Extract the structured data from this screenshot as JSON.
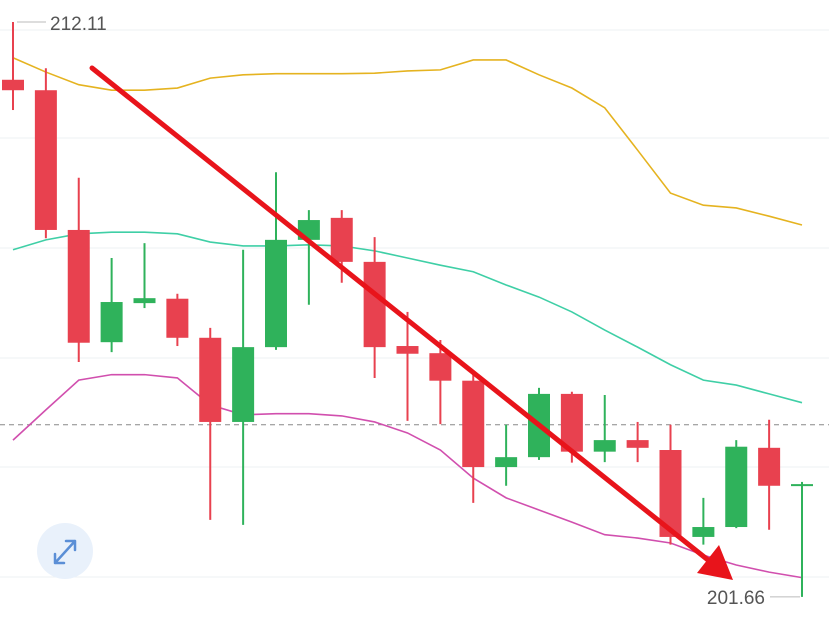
{
  "chart_data": {
    "type": "candlestick",
    "ylim": [
      201.24,
      212.51
    ],
    "up_color": "#2fb25b",
    "down_color": "#e8414f",
    "open": [
      211.06,
      210.87,
      208.33,
      206.29,
      207.0,
      207.08,
      206.37,
      204.84,
      206.2,
      208.15,
      208.55,
      207.75,
      206.22,
      206.09,
      205.59,
      204.02,
      204.2,
      205.35,
      204.3,
      204.51,
      204.33,
      202.75,
      202.93,
      204.37,
      203.68
    ],
    "high": [
      212.11,
      211.27,
      209.28,
      207.82,
      208.09,
      207.17,
      206.55,
      207.97,
      209.38,
      208.69,
      208.69,
      208.2,
      206.84,
      206.33,
      205.75,
      204.79,
      205.46,
      205.39,
      205.33,
      204.84,
      204.79,
      203.46,
      204.51,
      204.88,
      203.75
    ],
    "low": [
      210.51,
      208.18,
      205.93,
      206.11,
      206.91,
      206.22,
      203.06,
      202.97,
      206.15,
      206.97,
      207.37,
      205.64,
      204.86,
      204.8,
      203.37,
      203.68,
      204.15,
      204.1,
      204.11,
      204.11,
      202.61,
      202.61,
      202.91,
      202.88,
      201.66
    ],
    "close": [
      210.87,
      208.33,
      206.28,
      207.02,
      207.09,
      206.37,
      204.84,
      206.2,
      208.15,
      208.51,
      207.75,
      206.2,
      206.08,
      205.59,
      204.02,
      204.2,
      205.35,
      204.3,
      204.51,
      204.37,
      202.75,
      202.93,
      204.39,
      203.68,
      203.71
    ],
    "series": [
      {
        "color": "#e5b320",
        "values": [
          211.46,
          211.2,
          210.97,
          210.87,
          210.87,
          210.91,
          211.09,
          211.15,
          211.17,
          211.17,
          211.17,
          211.18,
          211.22,
          211.24,
          211.42,
          211.42,
          211.15,
          210.91,
          210.55,
          209.78,
          209.0,
          208.78,
          208.73,
          208.58,
          208.42
        ]
      },
      {
        "color": "#3fcfa6",
        "values": [
          207.97,
          208.15,
          208.26,
          208.29,
          208.29,
          208.26,
          208.11,
          208.04,
          208.04,
          208.06,
          208.04,
          207.95,
          207.82,
          207.69,
          207.57,
          207.33,
          207.11,
          206.84,
          206.51,
          206.2,
          205.88,
          205.6,
          205.51,
          205.35,
          205.19
        ]
      },
      {
        "color": "#d14fae",
        "values": [
          204.51,
          205.06,
          205.6,
          205.7,
          205.7,
          205.64,
          205.15,
          204.97,
          204.99,
          204.99,
          204.95,
          204.84,
          204.64,
          204.33,
          203.82,
          203.46,
          203.24,
          203.02,
          202.79,
          202.73,
          202.64,
          202.42,
          202.24,
          202.11,
          202.01
        ]
      }
    ],
    "reference_line": 204.79,
    "max_price": 212.11,
    "min_price": 201.66
  }
}
